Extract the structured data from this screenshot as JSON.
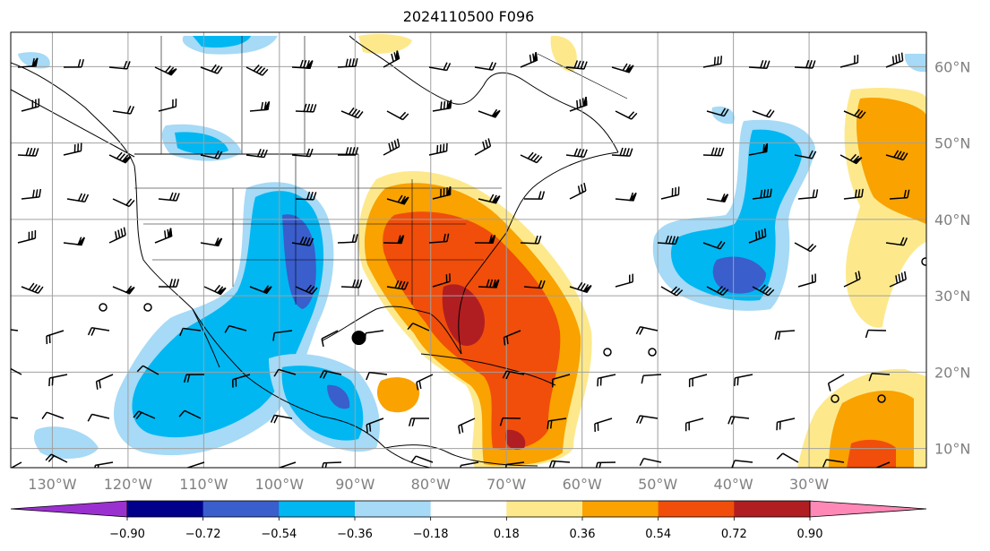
{
  "title": "2024110500 F096",
  "map": {
    "lon_labels": [
      "130°W",
      "120°W",
      "110°W",
      "100°W",
      "90°W",
      "80°W",
      "70°W",
      "60°W",
      "50°W",
      "40°W",
      "30°W"
    ],
    "lon_values": [
      -130,
      -120,
      -110,
      -100,
      -90,
      -80,
      -70,
      -60,
      -50,
      -40,
      -30
    ],
    "lat_labels": [
      "60°N",
      "50°N",
      "40°N",
      "30°N",
      "20°N",
      "10°N"
    ],
    "lat_values": [
      60,
      50,
      40,
      30,
      20,
      10
    ],
    "lon_range": [
      -135.5,
      -14.5
    ],
    "lat_range": [
      7.5,
      64.5
    ],
    "gridlines": true,
    "center_marker": {
      "lon": -89.5,
      "lat": 24.5
    }
  },
  "colorbar": {
    "tick_labels": [
      "−0.90",
      "−0.72",
      "−0.54",
      "−0.36",
      "−0.18",
      "0.18",
      "0.36",
      "0.54",
      "0.72",
      "0.90"
    ],
    "colors": [
      "#9b30d0",
      "#00008b",
      "#3a5ecc",
      "#00b7f2",
      "#a6daf6",
      "#ffffff",
      "#fde98c",
      "#f9a200",
      "#f04e0a",
      "#b01e22",
      "#ff88b6"
    ],
    "extend": "both"
  }
}
